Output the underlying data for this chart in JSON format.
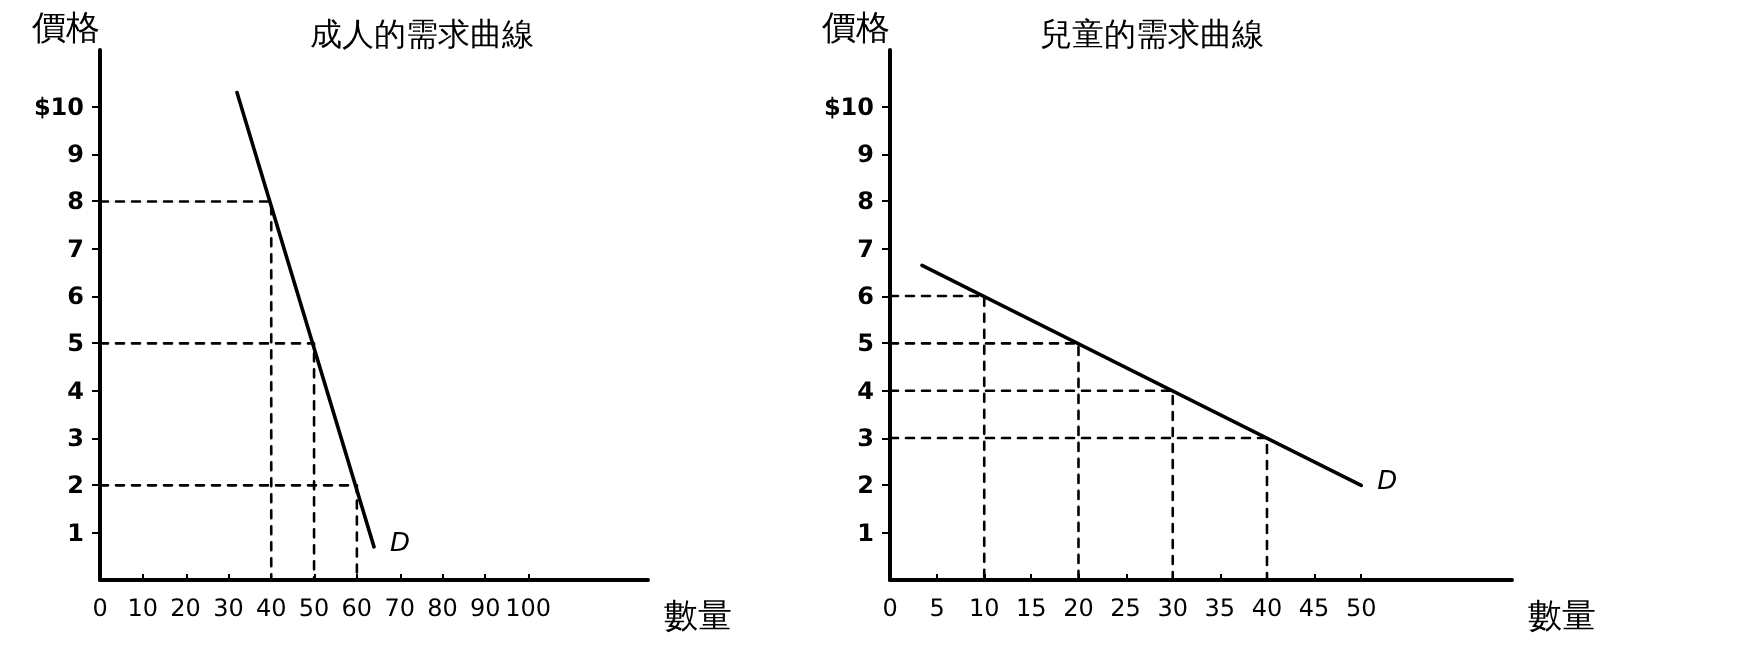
{
  "chart_data": [
    {
      "type": "line",
      "title": "成人的需求曲線",
      "xlabel": "數量",
      "ylabel": "價格",
      "xlim": [
        0,
        128
      ],
      "ylim": [
        0,
        11.2
      ],
      "xticks": [
        0,
        10,
        20,
        30,
        40,
        50,
        60,
        70,
        80,
        90,
        100
      ],
      "yticks": [
        1,
        2,
        3,
        4,
        5,
        6,
        7,
        8,
        9,
        {
          "value": 10,
          "label": "$10"
        }
      ],
      "grid": false,
      "marker": "none",
      "annotations": [
        {
          "text": "D",
          "x": 64,
          "y": 0.7
        }
      ],
      "series": [
        {
          "color": "#000000",
          "line_style": "solid",
          "x": [
            32,
            64
          ],
          "values": [
            10.3,
            0.7
          ]
        },
        {
          "color": "#000000",
          "line_style": "dashed",
          "x": [
            0,
            40,
            40
          ],
          "values": [
            8,
            8,
            0
          ]
        },
        {
          "color": "#000000",
          "line_style": "dashed",
          "x": [
            0,
            50,
            50
          ],
          "values": [
            5,
            5,
            0
          ]
        },
        {
          "color": "#000000",
          "line_style": "dashed",
          "x": [
            0,
            60,
            60
          ],
          "values": [
            2,
            2,
            0
          ]
        }
      ]
    },
    {
      "type": "line",
      "title": "兒童的需求曲線",
      "xlabel": "數量",
      "ylabel": "價格",
      "xlim": [
        0,
        66
      ],
      "ylim": [
        0,
        11.2
      ],
      "xticks": [
        0,
        5,
        10,
        15,
        20,
        25,
        30,
        35,
        40,
        45,
        50
      ],
      "yticks": [
        1,
        2,
        3,
        4,
        5,
        6,
        7,
        8,
        9,
        {
          "value": 10,
          "label": "$10"
        }
      ],
      "grid": false,
      "marker": "none",
      "annotations": [
        {
          "text": "D",
          "x": 50,
          "y": 2
        }
      ],
      "series": [
        {
          "color": "#000000",
          "line_style": "solid",
          "x": [
            3.4,
            50
          ],
          "values": [
            6.65,
            2
          ]
        },
        {
          "color": "#000000",
          "line_style": "dashed",
          "x": [
            0,
            10,
            10
          ],
          "values": [
            6,
            6,
            0
          ]
        },
        {
          "color": "#000000",
          "line_style": "dashed",
          "x": [
            0,
            20,
            20
          ],
          "values": [
            5,
            5,
            0
          ]
        },
        {
          "color": "#000000",
          "line_style": "dashed",
          "x": [
            0,
            30,
            30
          ],
          "values": [
            4,
            4,
            0
          ]
        },
        {
          "color": "#000000",
          "line_style": "dashed",
          "x": [
            0,
            40,
            40
          ],
          "values": [
            3,
            3,
            0
          ]
        }
      ]
    }
  ]
}
